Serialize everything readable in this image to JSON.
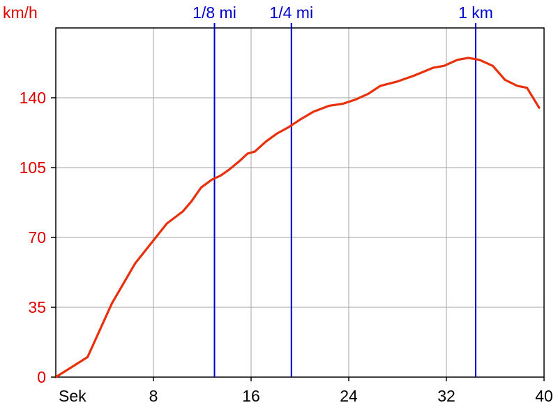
{
  "chart_data": {
    "type": "line",
    "y_unit_label": "km/h",
    "x_unit_label": "Sek",
    "xlim": [
      0,
      40
    ],
    "ylim": [
      0,
      175
    ],
    "x_ticks": [
      8,
      16,
      24,
      32,
      40
    ],
    "y_ticks": [
      0,
      35,
      70,
      105,
      140
    ],
    "grid": true,
    "colors": {
      "line": "#e8300a",
      "marker": "#0000cc",
      "grid": "#a0a0a0",
      "y_text": "#e00000"
    },
    "distance_markers": [
      {
        "label": "1/8 mi",
        "x": 13.0
      },
      {
        "label": "1/4 mi",
        "x": 19.3
      },
      {
        "label": "1 km",
        "x": 34.4
      }
    ],
    "series": [
      {
        "x": [
          0,
          2.6,
          4.6,
          6.5,
          7.8,
          9.1,
          10.4,
          11.1,
          11.9,
          12.8,
          13.5,
          14.2,
          15.0,
          15.7,
          16.3,
          17.2,
          18.1,
          19.0,
          20.0,
          21.1,
          22.4,
          23.5,
          24.5,
          25.6,
          26.6,
          27.9,
          29.3,
          30.9,
          31.8,
          32.9,
          33.8,
          34.7,
          35.8,
          36.8,
          37.8,
          38.6,
          39.6
        ],
        "y": [
          0,
          10,
          37,
          57,
          67,
          77,
          83,
          88,
          95,
          99,
          101,
          104,
          108,
          112,
          113,
          118,
          122,
          125,
          129,
          133,
          136,
          137,
          139,
          142,
          146,
          148,
          151,
          155,
          156,
          159,
          160,
          159,
          156,
          149,
          146,
          145,
          135
        ]
      }
    ]
  }
}
